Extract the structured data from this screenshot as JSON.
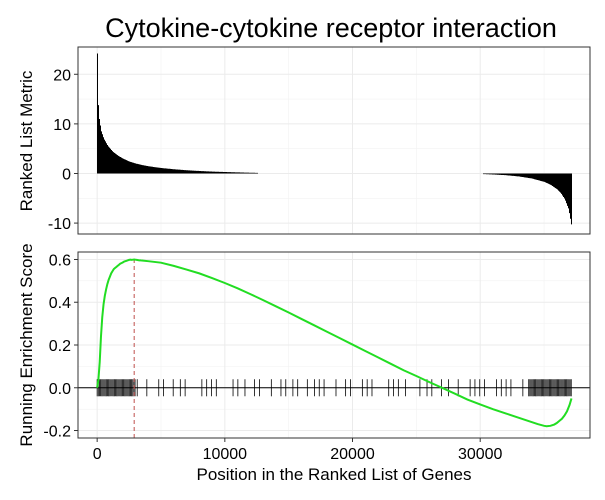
{
  "chart_data": [
    {
      "type": "bar",
      "panel": "ranked-list-metric",
      "title": "Cytokine-cytokine receptor interaction",
      "ylabel": "Ranked List Metric",
      "xlim": [
        -1500,
        38600
      ],
      "ylim": [
        -12.2,
        25.5
      ],
      "x_ticks": [
        0,
        10000,
        20000,
        30000
      ],
      "y_ticks": [
        -10,
        0,
        10,
        20
      ],
      "grid": true,
      "metric_curve": {
        "x": [
          0,
          60,
          150,
          300,
          500,
          800,
          1200,
          1600,
          2000,
          2500,
          3000,
          3500,
          4000,
          5000,
          6000,
          7000,
          8000,
          9000,
          10000,
          11000,
          12000,
          13000,
          14000,
          15000,
          16000,
          18000,
          20000,
          22000,
          24000,
          26000,
          27000,
          28000,
          29000,
          30000,
          31000,
          32000,
          33000,
          34000,
          35000,
          35500,
          36000,
          36300,
          36600,
          36900,
          37150
        ],
        "y": [
          24.2,
          14,
          10.8,
          8.5,
          7,
          5.6,
          4.4,
          3.6,
          3,
          2.4,
          2,
          1.7,
          1.45,
          1.1,
          0.85,
          0.65,
          0.5,
          0.38,
          0.3,
          0.22,
          0.15,
          0.1,
          0.06,
          0.03,
          0.01,
          0,
          0,
          0,
          0,
          0,
          0,
          -0.01,
          -0.04,
          -0.1,
          -0.2,
          -0.35,
          -0.6,
          -1,
          -1.7,
          -2.3,
          -3.2,
          -4,
          -5.2,
          -7.2,
          -10.8
        ]
      }
    },
    {
      "type": "line",
      "panel": "running-enrichment-score",
      "xlabel": "Position in the Ranked List of Genes",
      "ylabel": "Running Enrichment Score",
      "xlim": [
        -1500,
        38600
      ],
      "ylim": [
        -0.235,
        0.635
      ],
      "x_ticks": [
        0,
        10000,
        20000,
        30000
      ],
      "x_tick_labels": [
        "0",
        "10000",
        "20000",
        "30000"
      ],
      "y_ticks": [
        -0.2,
        0.0,
        0.2,
        0.4,
        0.6
      ],
      "y_tick_labels": [
        "-0.2",
        "0.0",
        "0.2",
        "0.4",
        "0.6"
      ],
      "grid": true,
      "line_color": "#22dd22",
      "peak_marker_color": "#c0504d",
      "peak_position": 2900,
      "series": [
        {
          "x": [
            0,
            100,
            200,
            300,
            400,
            500,
            600,
            700,
            800,
            900,
            1000,
            1100,
            1200,
            1300,
            1400,
            1500,
            1600,
            1700,
            1800,
            1900,
            2000,
            2100,
            2200,
            2300,
            2400,
            2500,
            2600,
            2700,
            2800,
            2900,
            3000,
            3100,
            3200,
            3300,
            3400,
            3500,
            4000,
            5000,
            6000,
            7000,
            8000,
            9000,
            10000,
            11000,
            12000,
            13000,
            14000,
            15000,
            16000,
            17000,
            18000,
            19000,
            20000,
            21000,
            22000,
            23000,
            24000,
            25000,
            26000,
            27000,
            28000,
            29000,
            30000,
            31000,
            32000,
            33000,
            34000,
            34500,
            35000,
            35200,
            35500,
            35800,
            36000,
            36200,
            36400,
            36600,
            36800,
            37000,
            37150
          ],
          "y": [
            0.0,
            0.04,
            0.12,
            0.24,
            0.33,
            0.39,
            0.43,
            0.46,
            0.485,
            0.505,
            0.52,
            0.535,
            0.545,
            0.555,
            0.56,
            0.565,
            0.57,
            0.575,
            0.58,
            0.583,
            0.586,
            0.59,
            0.592,
            0.594,
            0.596,
            0.598,
            0.599,
            0.598,
            0.599,
            0.6,
            0.599,
            0.598,
            0.597,
            0.596,
            0.596,
            0.595,
            0.592,
            0.585,
            0.57,
            0.553,
            0.535,
            0.513,
            0.49,
            0.465,
            0.438,
            0.41,
            0.381,
            0.352,
            0.322,
            0.292,
            0.262,
            0.232,
            0.202,
            0.172,
            0.142,
            0.112,
            0.082,
            0.055,
            0.027,
            0.0,
            -0.027,
            -0.055,
            -0.078,
            -0.1,
            -0.12,
            -0.14,
            -0.16,
            -0.17,
            -0.178,
            -0.18,
            -0.178,
            -0.172,
            -0.165,
            -0.155,
            -0.145,
            -0.13,
            -0.11,
            -0.08,
            -0.05
          ]
        }
      ],
      "hits_pattern": {
        "dense_ranges": [
          [
            0,
            3000
          ],
          [
            33800,
            37150
          ]
        ],
        "dense_step": 90,
        "sparse_range": [
          3000,
          33800
        ],
        "sparse_step": 420
      }
    }
  ]
}
